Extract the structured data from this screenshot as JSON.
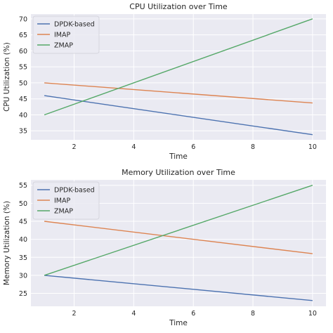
{
  "chart_data": [
    {
      "type": "line",
      "title": "CPU Utilization over Time",
      "xlabel": "Time",
      "ylabel": "CPU Utilization (%)",
      "xlim": [
        0.55,
        10.45
      ],
      "ylim": [
        32.2,
        71.5
      ],
      "xticks": [
        2,
        4,
        6,
        8,
        10
      ],
      "yticks": [
        35,
        40,
        45,
        50,
        55,
        60,
        65,
        70
      ],
      "grid": true,
      "legend_position": "top-left",
      "series": [
        {
          "name": "DPDK-based",
          "color": "#4c72b0",
          "x": [
            1,
            10
          ],
          "y": [
            46,
            33.8
          ]
        },
        {
          "name": "IMAP",
          "color": "#dd8452",
          "x": [
            1,
            10
          ],
          "y": [
            50,
            43.7
          ]
        },
        {
          "name": "ZMAP",
          "color": "#55a868",
          "x": [
            1,
            10
          ],
          "y": [
            40,
            70
          ]
        }
      ]
    },
    {
      "type": "line",
      "title": "Memory Utilization over Time",
      "xlabel": "Time",
      "ylabel": "Memory Utilization (%)",
      "xlim": [
        0.55,
        10.45
      ],
      "ylim": [
        21.4,
        56.5
      ],
      "xticks": [
        2,
        4,
        6,
        8,
        10
      ],
      "yticks": [
        25,
        30,
        35,
        40,
        45,
        50,
        55
      ],
      "grid": true,
      "legend_position": "top-left",
      "series": [
        {
          "name": "DPDK-based",
          "color": "#4c72b0",
          "x": [
            1,
            10
          ],
          "y": [
            30,
            23
          ]
        },
        {
          "name": "IMAP",
          "color": "#dd8452",
          "x": [
            1,
            10
          ],
          "y": [
            45,
            36
          ]
        },
        {
          "name": "ZMAP",
          "color": "#55a868",
          "x": [
            1,
            10
          ],
          "y": [
            30,
            55
          ]
        }
      ]
    }
  ]
}
